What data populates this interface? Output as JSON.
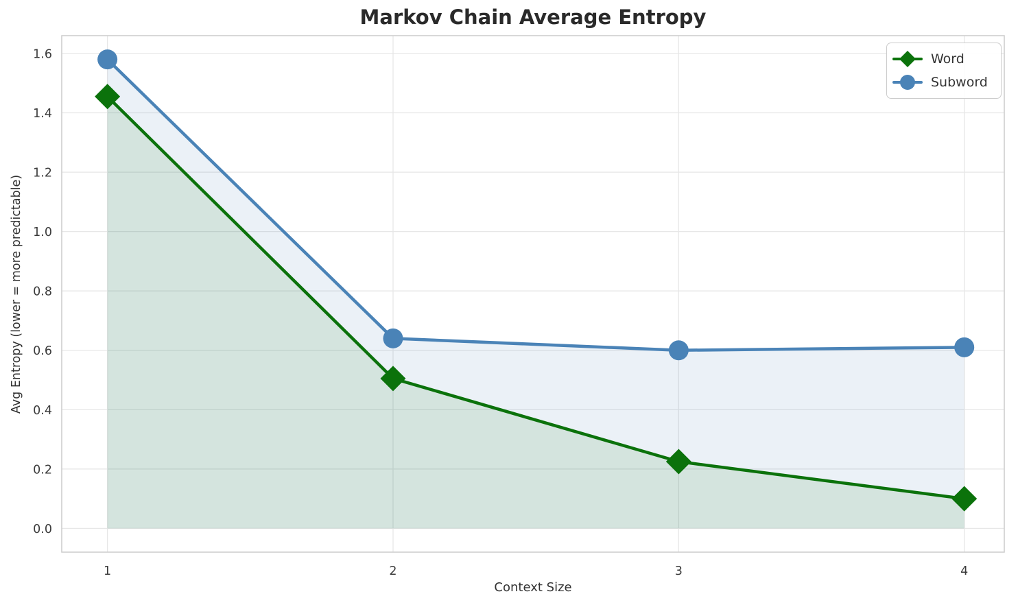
{
  "chart_data": {
    "type": "line",
    "title": "Markov Chain Average Entropy",
    "xlabel": "Context Size",
    "ylabel": "Avg Entropy (lower = more predictable)",
    "x": [
      1,
      2,
      3,
      4
    ],
    "series": [
      {
        "name": "Word",
        "values": [
          1.455,
          0.505,
          0.225,
          0.1
        ],
        "color": "#0b720b",
        "marker": "diamond",
        "area_fill_to_zero": true,
        "fill_opacity": 0.1
      },
      {
        "name": "Subword",
        "values": [
          1.58,
          0.64,
          0.6,
          0.61
        ],
        "color": "#4a83b7",
        "marker": "circle",
        "area_fill_to_zero": true,
        "fill_opacity": 0.11
      }
    ],
    "xticks": [
      "1",
      "2",
      "3",
      "4"
    ],
    "xtick_values": [
      1,
      2,
      3,
      4
    ],
    "yticks": [
      "0.0",
      "0.2",
      "0.4",
      "0.6",
      "0.8",
      "1.0",
      "1.2",
      "1.4",
      "1.6"
    ],
    "ytick_values": [
      0.0,
      0.2,
      0.4,
      0.6,
      0.8,
      1.0,
      1.2,
      1.4,
      1.6
    ],
    "xlim": [
      0.84,
      4.14
    ],
    "ylim": [
      -0.08,
      1.66
    ],
    "grid": true,
    "legend_position": "upper right",
    "legend": [
      "Word",
      "Subword"
    ]
  },
  "colors": {
    "grid": "#e7e7e7",
    "spine": "#cccccc",
    "tick_label": "#3b3b3b",
    "title": "#2a2a2a",
    "axis_label": "#333333",
    "background": "#ffffff"
  }
}
